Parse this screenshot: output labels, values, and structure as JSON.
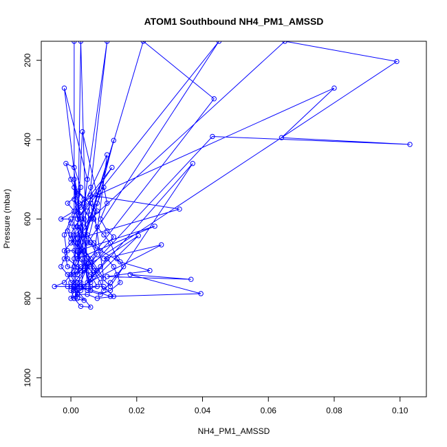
{
  "chart_data": {
    "type": "scatter",
    "title": "ATOM1 Southbound NH4_PM1_AMSSD",
    "xlabel": "NH4_PM1_AMSSD",
    "ylabel": "Pressure (mbar)",
    "xlim": [
      -0.009,
      0.108
    ],
    "ylim": [
      1048,
      152
    ],
    "y_reversed": true,
    "grid": false,
    "xticks": [
      0.0,
      0.02,
      0.04,
      0.06,
      0.08,
      0.1
    ],
    "xtick_labels": [
      "0.00",
      "0.02",
      "0.04",
      "0.06",
      "0.08",
      "0.10"
    ],
    "yticks": [
      200,
      400,
      600,
      800,
      1000
    ],
    "ytick_labels": [
      "200",
      "400",
      "600",
      "800",
      "1000"
    ],
    "color": "#0000ff",
    "series": [
      {
        "points": [
          [
            0.001,
            152
          ],
          [
            0.001,
            780
          ],
          [
            0.003,
            760
          ],
          [
            0.005,
            720
          ],
          [
            0.002,
            700
          ],
          [
            0.045,
            152
          ],
          [
            0.002,
            600
          ],
          [
            0.001,
            500
          ],
          [
            0.004,
            650
          ],
          [
            0.006,
            780
          ],
          [
            0.002,
            620
          ],
          [
            0.0035,
            380
          ],
          [
            0.008,
            540
          ],
          [
            0.002,
            700
          ],
          [
            0.003,
            152
          ],
          [
            0.005,
            760
          ],
          [
            -0.002,
            270
          ],
          [
            0.005,
            500
          ],
          [
            0.002,
            740
          ],
          [
            0.0435,
            297
          ],
          [
            0.022,
            152
          ],
          [
            0.001,
            740
          ],
          [
            0.099,
            203
          ],
          [
            0.065,
            152
          ],
          [
            0.006,
            600
          ],
          [
            0.0025,
            560
          ],
          [
            0.08,
            270
          ],
          [
            0.064,
            395
          ],
          [
            0.103,
            412
          ],
          [
            0.043,
            392
          ],
          [
            0.006,
            720
          ],
          [
            0.012,
            770
          ],
          [
            0.037,
            460
          ],
          [
            0.003,
            780
          ],
          [
            0.006,
            540
          ],
          [
            0.033,
            575
          ],
          [
            0.002,
            650
          ],
          [
            0.01,
            750
          ],
          [
            0.006,
            520
          ],
          [
            0.011,
            152
          ],
          [
            0.002,
            680
          ],
          [
            0.0255,
            618
          ],
          [
            0.002,
            700
          ],
          [
            0.013,
            402
          ],
          [
            0.005,
            660
          ],
          [
            0.015,
            708
          ],
          [
            0.024,
            730
          ],
          [
            0.011,
            745
          ],
          [
            0.0365,
            752
          ],
          [
            0.018,
            740
          ],
          [
            0.0395,
            788
          ],
          [
            0.012,
            795
          ],
          [
            0.003,
            770
          ],
          [
            0.0275,
            665
          ],
          [
            0.01,
            700
          ],
          [
            0.0205,
            642
          ],
          [
            0.006,
            760
          ],
          [
            0.011,
            438
          ],
          [
            0.004,
            560
          ],
          [
            0.0125,
            470
          ],
          [
            0.002,
            600
          ],
          [
            0.001,
            520
          ],
          [
            0.008,
            580
          ],
          [
            0.003,
            640
          ],
          [
            0.002,
            700
          ],
          [
            0.005,
            720
          ],
          [
            0.002,
            760
          ],
          [
            0.002,
            800
          ],
          [
            0.001,
            770
          ],
          [
            0.006,
            822
          ],
          [
            0.003,
            820
          ],
          [
            0.001,
            800
          ],
          [
            0.002,
            780
          ],
          [
            0.008,
            770
          ],
          [
            0.006,
            740
          ],
          [
            0.002,
            720
          ],
          [
            -0.001,
            700
          ],
          [
            -0.002,
            640
          ],
          [
            0.0,
            600
          ],
          [
            -0.003,
            600
          ],
          [
            0.001,
            580
          ],
          [
            -0.001,
            560
          ],
          [
            0.002,
            540
          ],
          [
            0.0,
            500
          ],
          [
            -0.0015,
            460
          ],
          [
            0.001,
            470
          ],
          [
            0.003,
            520
          ],
          [
            0.002,
            570
          ],
          [
            0.004,
            600
          ],
          [
            0.005,
            640
          ],
          [
            0.007,
            660
          ],
          [
            0.009,
            680
          ],
          [
            0.013,
            645
          ],
          [
            0.011,
            630
          ],
          [
            0.009,
            600
          ],
          [
            0.011,
            560
          ],
          [
            0.01,
            520
          ],
          [
            0.008,
            560
          ],
          [
            0.006,
            590
          ],
          [
            0.004,
            620
          ],
          [
            0.002,
            660
          ],
          [
            0.001,
            700
          ],
          [
            0.0,
            740
          ],
          [
            -0.002,
            760
          ],
          [
            -0.005,
            770
          ],
          [
            -0.001,
            770
          ],
          [
            0.002,
            770
          ],
          [
            0.006,
            770
          ],
          [
            0.01,
            770
          ],
          [
            0.013,
            795
          ],
          [
            0.008,
            800
          ],
          [
            0.005,
            790
          ],
          [
            0.002,
            790
          ],
          [
            0.0,
            800
          ],
          [
            0.001,
            780
          ],
          [
            0.001,
            740
          ],
          [
            0.003,
            720
          ],
          [
            0.006,
            700
          ],
          [
            0.004,
            680
          ],
          [
            0.002,
            690
          ],
          [
            0.004,
            710
          ],
          [
            0.003,
            730
          ],
          [
            -0.001,
            720
          ],
          [
            -0.002,
            680
          ],
          [
            0.0,
            660
          ],
          [
            0.002,
            640
          ],
          [
            0.003,
            620
          ],
          [
            0.005,
            580
          ],
          [
            0.006,
            560
          ],
          [
            0.007,
            600
          ],
          [
            0.008,
            620
          ],
          [
            0.01,
            640
          ],
          [
            0.012,
            660
          ],
          [
            0.014,
            700
          ],
          [
            0.016,
            720
          ],
          [
            0.014,
            740
          ],
          [
            0.012,
            760
          ],
          [
            0.01,
            780
          ],
          [
            0.009,
            760
          ],
          [
            0.007,
            730
          ],
          [
            0.005,
            700
          ],
          [
            0.003,
            680
          ],
          [
            0.001,
            660
          ],
          [
            0.0,
            640
          ],
          [
            0.001,
            620
          ],
          [
            0.003,
            600
          ],
          [
            0.002,
            580
          ],
          [
            0.001,
            550
          ],
          [
            0.002,
            530
          ],
          [
            0.004,
            550
          ],
          [
            0.003,
            570
          ],
          [
            0.001,
            590
          ],
          [
            0.0,
            610
          ],
          [
            -0.001,
            630
          ],
          [
            0.0,
            650
          ],
          [
            0.002,
            670
          ],
          [
            0.004,
            690
          ],
          [
            0.006,
            710
          ],
          [
            0.008,
            730
          ],
          [
            0.006,
            750
          ],
          [
            0.004,
            770
          ],
          [
            0.002,
            770
          ],
          [
            0.0,
            760
          ],
          [
            -0.001,
            740
          ],
          [
            -0.003,
            720
          ],
          [
            -0.002,
            700
          ],
          [
            -0.001,
            680
          ],
          [
            0.001,
            680
          ],
          [
            0.003,
            700
          ],
          [
            0.005,
            720
          ],
          [
            0.007,
            740
          ],
          [
            0.009,
            720
          ],
          [
            0.011,
            700
          ],
          [
            0.013,
            720
          ],
          [
            0.015,
            760
          ],
          [
            0.012,
            780
          ],
          [
            0.009,
            790
          ],
          [
            0.005,
            780
          ],
          [
            0.003,
            770
          ],
          [
            0.001,
            760
          ],
          [
            0.0,
            740
          ],
          [
            0.001,
            720
          ],
          [
            0.002,
            700
          ],
          [
            0.003,
            680
          ],
          [
            0.002,
            660
          ],
          [
            0.001,
            640
          ],
          [
            0.002,
            620
          ],
          [
            0.004,
            640
          ],
          [
            0.006,
            660
          ],
          [
            0.008,
            690
          ],
          [
            0.006,
            710
          ],
          [
            0.004,
            730
          ],
          [
            0.002,
            750
          ],
          [
            0.0,
            770
          ],
          [
            0.002,
            790
          ],
          [
            0.004,
            805
          ],
          [
            0.001,
            800
          ],
          [
            0.0,
            780
          ],
          [
            0.001,
            770
          ]
        ]
      }
    ]
  }
}
